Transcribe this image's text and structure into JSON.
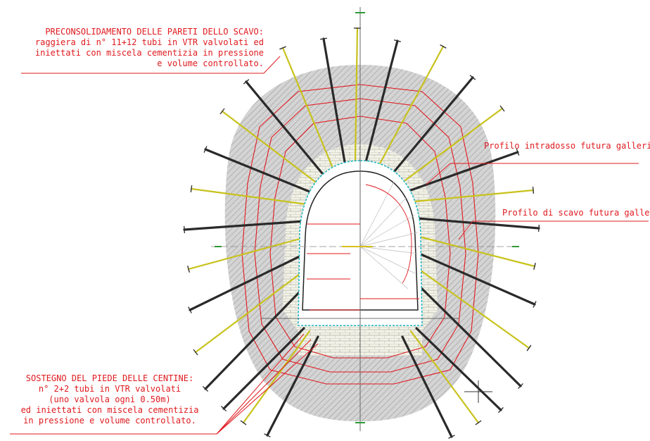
{
  "notes": {
    "top": {
      "line1": "PRECONSOLIDAMENTO DELLE PARETI DELLO SCAVO:",
      "line2": "raggiera di n° 11+12 tubi in VTR valvolati ed",
      "line3": "iniettati con miscela cementizia in pressione",
      "line4": "e volume controllato."
    },
    "bottom": {
      "line1": "SOSTEGNO DEL PIEDE DELLE CENTINE:",
      "line2": "n° 2+2 tubi in VTR valvolati",
      "line3": "(uno valvola ogni 0.50m)",
      "line4": "ed iniettati con miscela cementizia",
      "line5": "in pressione e volume controllato."
    },
    "intrados": "Profilo intradosso futura galleria",
    "excavation": "Profilo di scavo futura galleria"
  },
  "colors": {
    "annotation": "#e0191e",
    "bolt_dark": "#2a2a2a",
    "bolt_yellow": "#c8c21c",
    "axis_green": "#2f9a35",
    "fill_gray": "#c9c9c9"
  },
  "bolts": {
    "top_count": "11+12",
    "foot_count": "2+2"
  }
}
